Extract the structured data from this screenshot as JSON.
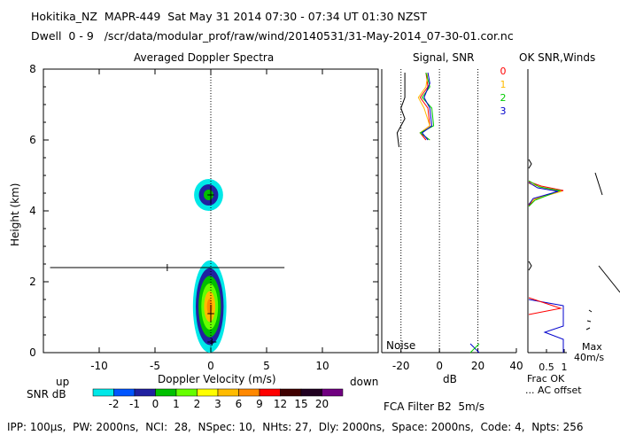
{
  "header": {
    "line1": "Hokitika_NZ  MAPR-449  Sat May 31 2014 07:30 - 07:34 UT 01:30 NZST",
    "line2": "Dwell  0 - 9   /scr/data/modular_prof/raw/wind/20140531/31-May-2014_07-30-01.cor.nc"
  },
  "footer": {
    "params": "IPP: 100μs,  PW: 2000ns,  NCI:  28,  NSpec: 10,  NHts: 27,  Dly: 2000ns,  Space: 2000ns,  Code: 4,  Npts: 256",
    "filter": "FCA Filter B2  5m/s"
  },
  "colors": {
    "snr_palette": [
      "#00e8e8",
      "#0055ff",
      "#2020a0",
      "#00c000",
      "#66ff00",
      "#ffff00",
      "#ffbb00",
      "#ff8800",
      "#ff0000",
      "#400000",
      "#200020",
      "#700080"
    ],
    "series": {
      "0": "#ff0000",
      "1": "#ffbb00",
      "2": "#00cc00",
      "3": "#0000cc",
      "noise": "#000000"
    }
  },
  "chart_data": [
    {
      "type": "heatmap",
      "title": "Averaged Doppler Spectra",
      "xlabel": "Doppler Velocity (m/s)",
      "ylabel": "Height (km)",
      "xlim": [
        -15,
        15
      ],
      "ylim": [
        0,
        8
      ],
      "xticks": [
        -20,
        -10,
        -5,
        0,
        5,
        10
      ],
      "xtick_labels": [
        "",
        "-10",
        "-5",
        "0",
        "5",
        "10"
      ],
      "yticks": [
        0,
        2,
        4,
        6,
        8
      ],
      "direction_labels": {
        "left": "up",
        "right": "down"
      },
      "colorbar": {
        "label": "SNR dB",
        "ticks": [
          "-2",
          "-1",
          "0",
          "1",
          "2",
          "3",
          "6",
          "9",
          "12",
          "15",
          "20"
        ]
      },
      "echo_blobs": [
        {
          "center_v": -0.2,
          "center_h": 4.45,
          "half_width_v": 1.3,
          "half_height_h": 0.45,
          "peak_snr": 3
        },
        {
          "center_v": -0.1,
          "center_h": 1.3,
          "half_width_v": 1.5,
          "half_height_h": 1.3,
          "peak_snr": 9
        }
      ],
      "moment_crosses": [
        {
          "v": -3.9,
          "h": 2.4,
          "half_v": 10.5,
          "half_h": 0.1
        },
        {
          "v": 0.1,
          "h": 0.3,
          "half_v": 0.4,
          "half_h": 0.1
        },
        {
          "v": 0.0,
          "h": 1.1,
          "half_v": 0.3,
          "half_h": 0.25
        },
        {
          "v": 0.0,
          "h": 4.45,
          "half_v": 0.3,
          "half_h": 0.25
        }
      ]
    },
    {
      "type": "line",
      "title": "Signal, SNR",
      "xlabel": "dB",
      "xlim": [
        -30,
        40
      ],
      "ylim": [
        0,
        8
      ],
      "xticks": [
        -20,
        0,
        20,
        40
      ],
      "xtick_labels": [
        "-20",
        "0",
        "20",
        "40"
      ],
      "note": "Noise",
      "series": [
        {
          "name": "noise",
          "points": [
            [
              -18,
              7.9
            ],
            [
              -18,
              7.2
            ],
            [
              -20,
              6.9
            ],
            [
              -18,
              6.6
            ],
            [
              -22,
              6.2
            ],
            [
              -21,
              5.8
            ]
          ]
        },
        {
          "name": "0",
          "points": [
            [
              -7,
              7.9
            ],
            [
              -6,
              7.5
            ],
            [
              -10,
              7.2
            ],
            [
              -6,
              6.9
            ],
            [
              -5,
              6.4
            ],
            [
              -10,
              6.2
            ],
            [
              -7,
              6.0
            ]
          ]
        },
        {
          "name": "1",
          "points": [
            [
              -6,
              7.9
            ],
            [
              -7,
              7.5
            ],
            [
              -11,
              7.2
            ],
            [
              -8,
              6.9
            ],
            [
              -5,
              6.4
            ],
            [
              -10,
              6.2
            ],
            [
              -5,
              6.0
            ]
          ]
        },
        {
          "name": "2",
          "points": [
            [
              -7,
              7.9
            ],
            [
              -5,
              7.5
            ],
            [
              -9,
              7.2
            ],
            [
              -4,
              6.9
            ],
            [
              -3,
              6.4
            ],
            [
              -10,
              6.2
            ],
            [
              -5,
              6.0
            ]
          ]
        },
        {
          "name": "3",
          "points": [
            [
              -6,
              7.9
            ],
            [
              -5,
              7.6
            ],
            [
              -8,
              7.2
            ],
            [
              -5,
              6.9
            ],
            [
              -4,
              6.4
            ],
            [
              -9,
              6.2
            ],
            [
              -6,
              6.0
            ]
          ]
        }
      ],
      "vlines": [
        -20,
        0,
        20
      ]
    },
    {
      "type": "line",
      "title": "OK SNR,Winds",
      "series_labels": [
        "0",
        "1",
        "2",
        "3"
      ],
      "xtick_labels": [
        "0.5",
        "1"
      ],
      "xlabel": "Frac OK",
      "note": "... AC offset",
      "wind_scale": {
        "label1": "Max",
        "label2": "40m/s"
      }
    }
  ]
}
